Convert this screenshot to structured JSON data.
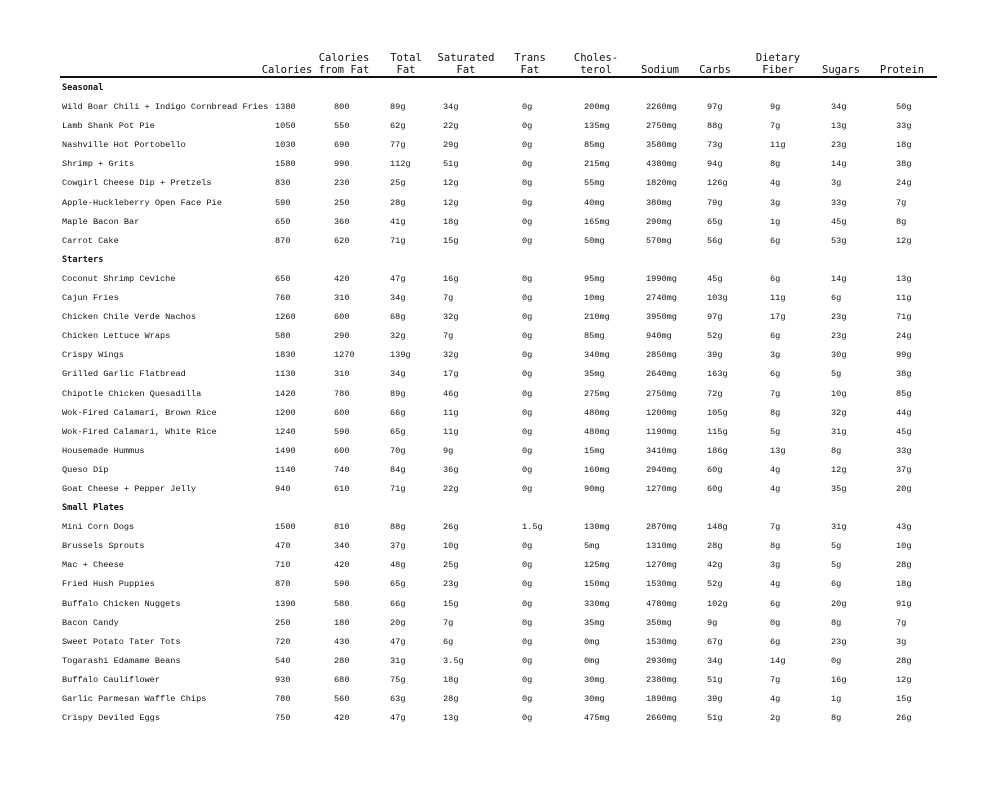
{
  "headers": [
    "Calories",
    "Calories\nfrom Fat",
    "Total\nFat",
    "Saturated\nFat",
    "Trans\nFat",
    "Choles-\nterol",
    "Sodium",
    "Carbs",
    "Dietary\nFiber",
    "Sugars",
    "Protein"
  ],
  "sections": [
    {
      "title": "Seasonal",
      "rows": [
        [
          "Wild Boar Chili + Indigo Cornbread Fries",
          "1380",
          "800",
          "89g",
          "34g",
          "0g",
          "200mg",
          "2260mg",
          "97g",
          "9g",
          "34g",
          "50g"
        ],
        [
          "Lamb Shank Pot Pie",
          "1050",
          "550",
          "62g",
          "22g",
          "0g",
          "135mg",
          "2750mg",
          "88g",
          "7g",
          "13g",
          "33g"
        ],
        [
          "Nashville Hot Portobello",
          "1030",
          "690",
          "77g",
          "29g",
          "0g",
          "85mg",
          "3580mg",
          "73g",
          "11g",
          "23g",
          "18g"
        ],
        [
          "Shrimp + Grits",
          "1580",
          "990",
          "112g",
          "51g",
          "0g",
          "215mg",
          "4380mg",
          "94g",
          "8g",
          "14g",
          "38g"
        ],
        [
          "Cowgirl Cheese Dip + Pretzels",
          "830",
          "230",
          "25g",
          "12g",
          "0g",
          "55mg",
          "1820mg",
          "126g",
          "4g",
          "3g",
          "24g"
        ],
        [
          "Apple-Huckleberry Open Face Pie",
          "590",
          "250",
          "28g",
          "12g",
          "0g",
          "40mg",
          "380mg",
          "79g",
          "3g",
          "33g",
          "7g"
        ],
        [
          "Maple Bacon Bar",
          "650",
          "360",
          "41g",
          "18g",
          "0g",
          "165mg",
          "290mg",
          "65g",
          "1g",
          "45g",
          "8g"
        ],
        [
          "Carrot Cake",
          "870",
          "620",
          "71g",
          "15g",
          "0g",
          "50mg",
          "570mg",
          "56g",
          "6g",
          "53g",
          "12g"
        ]
      ]
    },
    {
      "title": "Starters",
      "rows": [
        [
          "Coconut Shrimp Ceviche",
          "650",
          "420",
          "47g",
          "16g",
          "0g",
          "95mg",
          "1990mg",
          "45g",
          "6g",
          "14g",
          "13g"
        ],
        [
          "Cajun Fries",
          "760",
          "310",
          "34g",
          "7g",
          "0g",
          "10mg",
          "2740mg",
          "103g",
          "11g",
          "6g",
          "11g"
        ],
        [
          "Chicken Chile Verde Nachos",
          "1260",
          "600",
          "68g",
          "32g",
          "0g",
          "210mg",
          "3950mg",
          "97g",
          "17g",
          "23g",
          "71g"
        ],
        [
          "Chicken Lettuce Wraps",
          "580",
          "290",
          "32g",
          "7g",
          "0g",
          "85mg",
          "940mg",
          "52g",
          "6g",
          "23g",
          "24g"
        ],
        [
          "Crispy Wings",
          "1830",
          "1270",
          "139g",
          "32g",
          "0g",
          "340mg",
          "2850mg",
          "39g",
          "3g",
          "30g",
          "99g"
        ],
        [
          "Grilled Garlic Flatbread",
          "1130",
          "310",
          "34g",
          "17g",
          "0g",
          "35mg",
          "2640mg",
          "163g",
          "6g",
          "5g",
          "38g"
        ],
        [
          "Chipotle Chicken Quesadilla",
          "1420",
          "780",
          "89g",
          "46g",
          "0g",
          "275mg",
          "2750mg",
          "72g",
          "7g",
          "10g",
          "85g"
        ],
        [
          "Wok-Fired Calamari, Brown Rice",
          "1200",
          "600",
          "66g",
          "11g",
          "0g",
          "480mg",
          "1200mg",
          "105g",
          "8g",
          "32g",
          "44g"
        ],
        [
          "Wok-Fired Calamari, White Rice",
          "1240",
          "590",
          "65g",
          "11g",
          "0g",
          "480mg",
          "1190mg",
          "115g",
          "5g",
          "31g",
          "45g"
        ],
        [
          "Housemade Hummus",
          "1490",
          "600",
          "70g",
          "9g",
          "0g",
          "15mg",
          "3410mg",
          "186g",
          "13g",
          "8g",
          "33g"
        ],
        [
          "Queso Dip",
          "1140",
          "740",
          "84g",
          "36g",
          "0g",
          "160mg",
          "2940mg",
          "60g",
          "4g",
          "12g",
          "37g"
        ],
        [
          "Goat Cheese + Pepper Jelly",
          "940",
          "610",
          "71g",
          "22g",
          "0g",
          "90mg",
          "1270mg",
          "60g",
          "4g",
          "35g",
          "20g"
        ]
      ]
    },
    {
      "title": "Small Plates",
      "rows": [
        [
          "Mini Corn Dogs",
          "1500",
          "810",
          "88g",
          "26g",
          "1.5g",
          "130mg",
          "2870mg",
          "148g",
          "7g",
          "31g",
          "43g"
        ],
        [
          "Brussels Sprouts",
          "470",
          "340",
          "37g",
          "10g",
          "0g",
          "5mg",
          "1310mg",
          "28g",
          "8g",
          "5g",
          "10g"
        ],
        [
          "Mac + Cheese",
          "710",
          "420",
          "48g",
          "25g",
          "0g",
          "125mg",
          "1270mg",
          "42g",
          "3g",
          "5g",
          "28g"
        ],
        [
          "Fried Hush Puppies",
          "870",
          "590",
          "65g",
          "23g",
          "0g",
          "150mg",
          "1530mg",
          "52g",
          "4g",
          "6g",
          "18g"
        ],
        [
          "Buffalo Chicken Nuggets",
          "1390",
          "580",
          "66g",
          "15g",
          "0g",
          "330mg",
          "4780mg",
          "102g",
          "6g",
          "20g",
          "91g"
        ],
        [
          "Bacon Candy",
          "250",
          "180",
          "20g",
          "7g",
          "0g",
          "35mg",
          "350mg",
          "9g",
          "0g",
          "8g",
          "7g"
        ],
        [
          "Sweet Potato Tater Tots",
          "720",
          "430",
          "47g",
          "6g",
          "0g",
          "0mg",
          "1530mg",
          "67g",
          "6g",
          "23g",
          "3g"
        ],
        [
          "Togarashi Edamame Beans",
          "540",
          "280",
          "31g",
          "3.5g",
          "0g",
          "0mg",
          "2930mg",
          "34g",
          "14g",
          "0g",
          "28g"
        ],
        [
          "Buffalo Cauliflower",
          "930",
          "680",
          "75g",
          "18g",
          "0g",
          "30mg",
          "2380mg",
          "51g",
          "7g",
          "16g",
          "12g"
        ],
        [
          "Garlic Parmesan Waffle Chips",
          "780",
          "560",
          "63g",
          "28g",
          "0g",
          "30mg",
          "1890mg",
          "39g",
          "4g",
          "1g",
          "15g"
        ],
        [
          "Crispy Deviled Eggs",
          "750",
          "420",
          "47g",
          "13g",
          "0g",
          "475mg",
          "2660mg",
          "51g",
          "2g",
          "8g",
          "26g"
        ]
      ]
    }
  ]
}
